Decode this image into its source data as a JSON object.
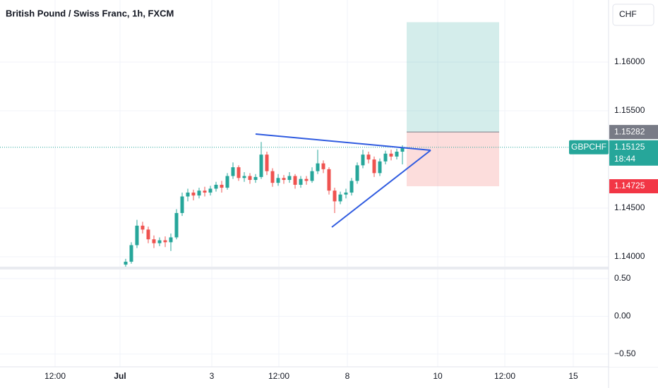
{
  "chart_data": {
    "type": "candlestick",
    "title": "British Pound / Swiss Franc, 1h, FXCM",
    "currency": "CHF",
    "symbol": "GBPCHF",
    "countdown": "18:44",
    "up_color": "#26a69a",
    "down_color": "#ef5350",
    "candles": [
      [
        1.1392,
        1.1398,
        1.1389,
        1.1395
      ],
      [
        1.1395,
        1.1415,
        1.1393,
        1.1412
      ],
      [
        1.1412,
        1.1438,
        1.1409,
        1.1432
      ],
      [
        1.1432,
        1.1436,
        1.1424,
        1.1428
      ],
      [
        1.1428,
        1.1431,
        1.1414,
        1.1418
      ],
      [
        1.1418,
        1.1422,
        1.1409,
        1.1414
      ],
      [
        1.1414,
        1.142,
        1.1411,
        1.1417
      ],
      [
        1.1417,
        1.1421,
        1.141,
        1.1415
      ],
      [
        1.1415,
        1.1424,
        1.1406,
        1.142
      ],
      [
        1.142,
        1.1449,
        1.1418,
        1.1445
      ],
      [
        1.1445,
        1.1466,
        1.1442,
        1.1462
      ],
      [
        1.1462,
        1.147,
        1.1457,
        1.1466
      ],
      [
        1.1466,
        1.1469,
        1.1458,
        1.1463
      ],
      [
        1.1463,
        1.1471,
        1.146,
        1.1468
      ],
      [
        1.1468,
        1.1472,
        1.1462,
        1.1466
      ],
      [
        1.1466,
        1.1473,
        1.1463,
        1.147
      ],
      [
        1.147,
        1.1477,
        1.1467,
        1.1474
      ],
      [
        1.1474,
        1.1478,
        1.1466,
        1.1471
      ],
      [
        1.1471,
        1.1486,
        1.1469,
        1.1483
      ],
      [
        1.1483,
        1.1497,
        1.148,
        1.1492
      ],
      [
        1.1492,
        1.1494,
        1.1478,
        1.1481
      ],
      [
        1.1481,
        1.1487,
        1.1477,
        1.1483
      ],
      [
        1.1483,
        1.1486,
        1.1475,
        1.1479
      ],
      [
        1.1479,
        1.1485,
        1.1476,
        1.1482
      ],
      [
        1.1482,
        1.1518,
        1.148,
        1.1505
      ],
      [
        1.1505,
        1.1508,
        1.1484,
        1.1488
      ],
      [
        1.1488,
        1.1491,
        1.1472,
        1.1476
      ],
      [
        1.1476,
        1.1485,
        1.1473,
        1.1481
      ],
      [
        1.1481,
        1.1484,
        1.1475,
        1.1479
      ],
      [
        1.1479,
        1.1487,
        1.1476,
        1.1483
      ],
      [
        1.1483,
        1.1485,
        1.147,
        1.1474
      ],
      [
        1.1474,
        1.1483,
        1.1471,
        1.148
      ],
      [
        1.148,
        1.1483,
        1.1474,
        1.1478
      ],
      [
        1.1478,
        1.1492,
        1.1476,
        1.1488
      ],
      [
        1.1488,
        1.151,
        1.1485,
        1.1496
      ],
      [
        1.1496,
        1.1499,
        1.1486,
        1.149
      ],
      [
        1.149,
        1.1492,
        1.1464,
        1.1468
      ],
      [
        1.1468,
        1.1471,
        1.1445,
        1.1457
      ],
      [
        1.1457,
        1.1467,
        1.1454,
        1.1464
      ],
      [
        1.1464,
        1.147,
        1.146,
        1.1466
      ],
      [
        1.1466,
        1.1481,
        1.1463,
        1.1478
      ],
      [
        1.1478,
        1.1497,
        1.1475,
        1.1494
      ],
      [
        1.1494,
        1.151,
        1.1491,
        1.1505
      ],
      [
        1.1505,
        1.1508,
        1.1496,
        1.15
      ],
      [
        1.15,
        1.1503,
        1.1482,
        1.1486
      ],
      [
        1.1486,
        1.1501,
        1.1483,
        1.1498
      ],
      [
        1.1498,
        1.1509,
        1.1495,
        1.1506
      ],
      [
        1.1506,
        1.151,
        1.1499,
        1.1503
      ],
      [
        1.1503,
        1.1511,
        1.15,
        1.1508
      ],
      [
        1.1508,
        1.15145,
        1.1495,
        1.15125
      ]
    ],
    "last_price": 1.15125,
    "position": {
      "target": 1.1641,
      "entry": 1.15282,
      "stop": 1.14725
    },
    "ylim": [
      1.13899,
      1.16638
    ],
    "yticks": [
      {
        "value": 1.14,
        "label": "1.14000"
      },
      {
        "value": 1.145,
        "label": "1.14500"
      },
      {
        "value": 1.155,
        "label": "1.15500"
      },
      {
        "value": 1.16,
        "label": "1.16000"
      }
    ],
    "xticks": [
      "12:00",
      "Jul",
      "3",
      "12:00",
      "8",
      "10",
      "12:00",
      "15"
    ],
    "indicator": {
      "ylim": [
        -0.67,
        0.62
      ],
      "yticks": [
        {
          "value": 0.5,
          "label": "0.50"
        },
        {
          "value": 0,
          "label": "0.00"
        },
        {
          "value": -0.5,
          "label": "−0.50"
        }
      ]
    }
  }
}
